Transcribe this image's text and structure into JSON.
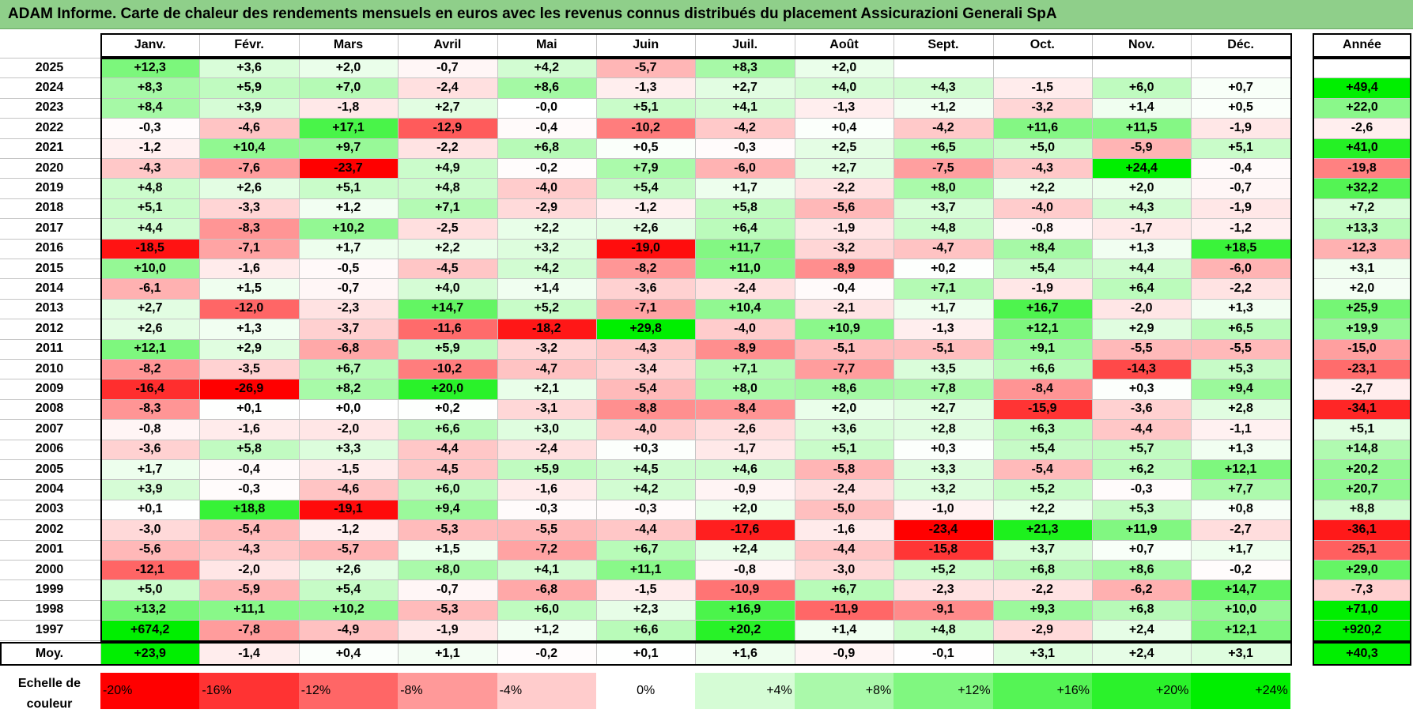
{
  "title": "ADAM Informe. Carte de chaleur des rendements mensuels en euros avec les revenus connus distribués du placement Assicurazioni Generali SpA",
  "chart_data": {
    "type": "heatmap",
    "columns": [
      "Janv.",
      "Févr.",
      "Mars",
      "Avril",
      "Mai",
      "Juin",
      "Juil.",
      "Août",
      "Sept.",
      "Oct.",
      "Nov.",
      "Déc."
    ],
    "annual_header": "Année",
    "rows": [
      {
        "year": "2025",
        "values": [
          "+12,3",
          "+3,6",
          "+2,0",
          "-0,7",
          "+4,2",
          "-5,7",
          "+8,3",
          "+2,0",
          "",
          "",
          "",
          ""
        ],
        "annual": ""
      },
      {
        "year": "2024",
        "values": [
          "+8,3",
          "+5,9",
          "+7,0",
          "-2,4",
          "+8,6",
          "-1,3",
          "+2,7",
          "+4,0",
          "+4,3",
          "-1,5",
          "+6,0",
          "+0,7"
        ],
        "annual": "+49,4"
      },
      {
        "year": "2023",
        "values": [
          "+8,4",
          "+3,9",
          "-1,8",
          "+2,7",
          "-0,0",
          "+5,1",
          "+4,1",
          "-1,3",
          "+1,2",
          "-3,2",
          "+1,4",
          "+0,5"
        ],
        "annual": "+22,0"
      },
      {
        "year": "2022",
        "values": [
          "-0,3",
          "-4,6",
          "+17,1",
          "-12,9",
          "-0,4",
          "-10,2",
          "-4,2",
          "+0,4",
          "-4,2",
          "+11,6",
          "+11,5",
          "-1,9"
        ],
        "annual": "-2,6"
      },
      {
        "year": "2021",
        "values": [
          "-1,2",
          "+10,4",
          "+9,7",
          "-2,2",
          "+6,8",
          "+0,5",
          "-0,3",
          "+2,5",
          "+6,5",
          "+5,0",
          "-5,9",
          "+5,1"
        ],
        "annual": "+41,0"
      },
      {
        "year": "2020",
        "values": [
          "-4,3",
          "-7,6",
          "-23,7",
          "+4,9",
          "-0,2",
          "+7,9",
          "-6,0",
          "+2,7",
          "-7,5",
          "-4,3",
          "+24,4",
          "-0,4"
        ],
        "annual": "-19,8"
      },
      {
        "year": "2019",
        "values": [
          "+4,8",
          "+2,6",
          "+5,1",
          "+4,8",
          "-4,0",
          "+5,4",
          "+1,7",
          "-2,2",
          "+8,0",
          "+2,2",
          "+2,0",
          "-0,7"
        ],
        "annual": "+32,2"
      },
      {
        "year": "2018",
        "values": [
          "+5,1",
          "-3,3",
          "+1,2",
          "+7,1",
          "-2,9",
          "-1,2",
          "+5,8",
          "-5,6",
          "+3,7",
          "-4,0",
          "+4,3",
          "-1,9"
        ],
        "annual": "+7,2"
      },
      {
        "year": "2017",
        "values": [
          "+4,4",
          "-8,3",
          "+10,2",
          "-2,5",
          "+2,2",
          "+2,6",
          "+6,4",
          "-1,9",
          "+4,8",
          "-0,8",
          "-1,7",
          "-1,2"
        ],
        "annual": "+13,3"
      },
      {
        "year": "2016",
        "values": [
          "-18,5",
          "-7,1",
          "+1,7",
          "+2,2",
          "+3,2",
          "-19,0",
          "+11,7",
          "-3,2",
          "-4,7",
          "+8,4",
          "+1,3",
          "+18,5"
        ],
        "annual": "-12,3"
      },
      {
        "year": "2015",
        "values": [
          "+10,0",
          "-1,6",
          "-0,5",
          "-4,5",
          "+4,2",
          "-8,2",
          "+11,0",
          "-8,9",
          "+0,2",
          "+5,4",
          "+4,4",
          "-6,0"
        ],
        "annual": "+3,1"
      },
      {
        "year": "2014",
        "values": [
          "-6,1",
          "+1,5",
          "-0,7",
          "+4,0",
          "+1,4",
          "-3,6",
          "-2,4",
          "-0,4",
          "+7,1",
          "-1,9",
          "+6,4",
          "-2,2"
        ],
        "annual": "+2,0"
      },
      {
        "year": "2013",
        "values": [
          "+2,7",
          "-12,0",
          "-2,3",
          "+14,7",
          "+5,2",
          "-7,1",
          "+10,4",
          "-2,1",
          "+1,7",
          "+16,7",
          "-2,0",
          "+1,3"
        ],
        "annual": "+25,9"
      },
      {
        "year": "2012",
        "values": [
          "+2,6",
          "+1,3",
          "-3,7",
          "-11,6",
          "-18,2",
          "+29,8",
          "-4,0",
          "+10,9",
          "-1,3",
          "+12,1",
          "+2,9",
          "+6,5"
        ],
        "annual": "+19,9"
      },
      {
        "year": "2011",
        "values": [
          "+12,1",
          "+2,9",
          "-6,8",
          "+5,9",
          "-3,2",
          "-4,3",
          "-8,9",
          "-5,1",
          "-5,1",
          "+9,1",
          "-5,5",
          "-5,5"
        ],
        "annual": "-15,0"
      },
      {
        "year": "2010",
        "values": [
          "-8,2",
          "-3,5",
          "+6,7",
          "-10,2",
          "-4,7",
          "-3,4",
          "+7,1",
          "-7,7",
          "+3,5",
          "+6,6",
          "-14,3",
          "+5,3"
        ],
        "annual": "-23,1"
      },
      {
        "year": "2009",
        "values": [
          "-16,4",
          "-26,9",
          "+8,2",
          "+20,0",
          "+2,1",
          "-5,4",
          "+8,0",
          "+8,6",
          "+7,8",
          "-8,4",
          "+0,3",
          "+9,4"
        ],
        "annual": "-2,7"
      },
      {
        "year": "2008",
        "values": [
          "-8,3",
          "+0,1",
          "+0,0",
          "+0,2",
          "-3,1",
          "-8,8",
          "-8,4",
          "+2,0",
          "+2,7",
          "-15,9",
          "-3,6",
          "+2,8"
        ],
        "annual": "-34,1"
      },
      {
        "year": "2007",
        "values": [
          "-0,8",
          "-1,6",
          "-2,0",
          "+6,6",
          "+3,0",
          "-4,0",
          "-2,6",
          "+3,6",
          "+2,8",
          "+6,3",
          "-4,4",
          "-1,1"
        ],
        "annual": "+5,1"
      },
      {
        "year": "2006",
        "values": [
          "-3,6",
          "+5,8",
          "+3,3",
          "-4,4",
          "-2,4",
          "+0,3",
          "-1,7",
          "+5,1",
          "+0,3",
          "+5,4",
          "+5,7",
          "+1,3"
        ],
        "annual": "+14,8"
      },
      {
        "year": "2005",
        "values": [
          "+1,7",
          "-0,4",
          "-1,5",
          "-4,5",
          "+5,9",
          "+4,5",
          "+4,6",
          "-5,8",
          "+3,3",
          "-5,4",
          "+6,2",
          "+12,1"
        ],
        "annual": "+20,2"
      },
      {
        "year": "2004",
        "values": [
          "+3,9",
          "-0,3",
          "-4,6",
          "+6,0",
          "-1,6",
          "+4,2",
          "-0,9",
          "-2,4",
          "+3,2",
          "+5,2",
          "-0,3",
          "+7,7"
        ],
        "annual": "+20,7"
      },
      {
        "year": "2003",
        "values": [
          "+0,1",
          "+18,8",
          "-19,1",
          "+9,4",
          "-0,3",
          "-0,3",
          "+2,0",
          "-5,0",
          "-1,0",
          "+2,2",
          "+5,3",
          "+0,8"
        ],
        "annual": "+8,8"
      },
      {
        "year": "2002",
        "values": [
          "-3,0",
          "-5,4",
          "-1,2",
          "-5,3",
          "-5,5",
          "-4,4",
          "-17,6",
          "-1,6",
          "-23,4",
          "+21,3",
          "+11,9",
          "-2,7"
        ],
        "annual": "-36,1"
      },
      {
        "year": "2001",
        "values": [
          "-5,6",
          "-4,3",
          "-5,7",
          "+1,5",
          "-7,2",
          "+6,7",
          "+2,4",
          "-4,4",
          "-15,8",
          "+3,7",
          "+0,7",
          "+1,7"
        ],
        "annual": "-25,1"
      },
      {
        "year": "2000",
        "values": [
          "-12,1",
          "-2,0",
          "+2,6",
          "+8,0",
          "+4,1",
          "+11,1",
          "-0,8",
          "-3,0",
          "+5,2",
          "+6,8",
          "+8,6",
          "-0,2"
        ],
        "annual": "+29,0"
      },
      {
        "year": "1999",
        "values": [
          "+5,0",
          "-5,9",
          "+5,4",
          "-0,7",
          "-6,8",
          "-1,5",
          "-10,9",
          "+6,7",
          "-2,3",
          "-2,2",
          "-6,2",
          "+14,7"
        ],
        "annual": "-7,3"
      },
      {
        "year": "1998",
        "values": [
          "+13,2",
          "+11,1",
          "+10,2",
          "-5,3",
          "+6,0",
          "+2,3",
          "+16,9",
          "-11,9",
          "-9,1",
          "+9,3",
          "+6,8",
          "+10,0"
        ],
        "annual": "+71,0"
      },
      {
        "year": "1997",
        "values": [
          "+674,2",
          "-7,8",
          "-4,9",
          "-1,9",
          "+1,2",
          "+6,6",
          "+20,2",
          "+1,4",
          "+4,8",
          "-2,9",
          "+2,4",
          "+12,1"
        ],
        "annual": "+920,2"
      }
    ],
    "average": {
      "label": "Moy.",
      "values": [
        "+23,9",
        "-1,4",
        "+0,4",
        "+1,1",
        "-0,2",
        "+0,1",
        "+1,6",
        "-0,9",
        "-0,1",
        "+3,1",
        "+2,4",
        "+3,1"
      ],
      "annual": "+40,3"
    },
    "scale": {
      "label_line1": "Echelle de",
      "label_line2": "couleur",
      "steps": [
        {
          "label": "-20%",
          "value": -20,
          "color": "#ff0000"
        },
        {
          "label": "-16%",
          "value": -16,
          "color": "#ff3333"
        },
        {
          "label": "-12%",
          "value": -12,
          "color": "#ff6666"
        },
        {
          "label": "-8%",
          "value": -8,
          "color": "#ff9999"
        },
        {
          "label": "-4%",
          "value": -4,
          "color": "#ffcccc"
        },
        {
          "label": "0%",
          "value": 0,
          "color": "#ffffff"
        },
        {
          "label": "+4%",
          "value": 4,
          "color": "#d5fcd5"
        },
        {
          "label": "+8%",
          "value": 8,
          "color": "#aaf9aa"
        },
        {
          "label": "+12%",
          "value": 12,
          "color": "#80f780"
        },
        {
          "label": "+16%",
          "value": 16,
          "color": "#55f455"
        },
        {
          "label": "+20%",
          "value": 20,
          "color": "#2bf22b"
        },
        {
          "label": "+24%",
          "value": 24,
          "color": "#00ef00"
        }
      ]
    }
  }
}
